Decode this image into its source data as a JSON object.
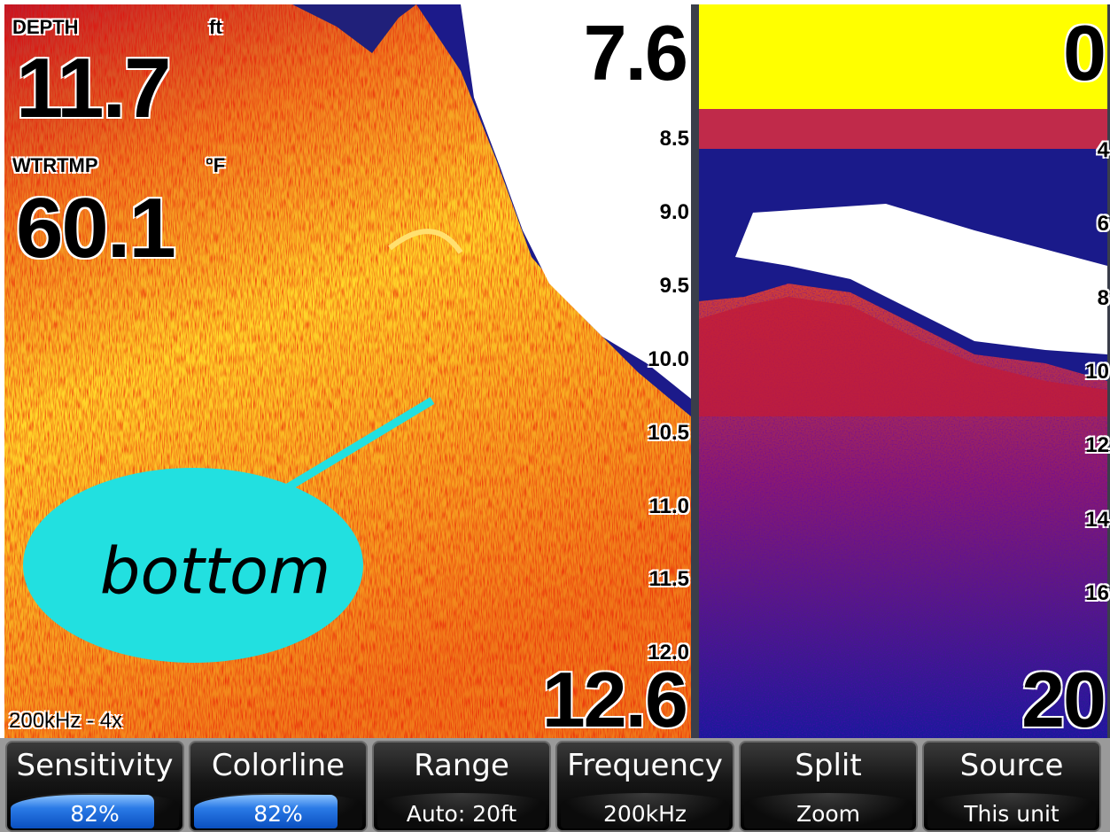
{
  "left_panel": {
    "depth_label": "DEPTH",
    "depth_unit": "ft",
    "depth_value": "11.7",
    "temp_label": "WTRTMP",
    "temp_unit": "°F",
    "temp_value": "60.1",
    "range_top": "7.6",
    "range_bottom": "12.6",
    "scale": [
      "8.5",
      "9.0",
      "9.5",
      "10.0",
      "10.5",
      "11.0",
      "11.5",
      "12.0"
    ],
    "frequency_info": "200kHz - 4x",
    "callout": "bottom"
  },
  "right_panel": {
    "range_top": "0",
    "range_bottom": "20",
    "scale": [
      "4",
      "6",
      "8",
      "10",
      "12",
      "14",
      "16"
    ]
  },
  "menu": [
    {
      "label": "Sensitivity",
      "value": "82%"
    },
    {
      "label": "Colorline",
      "value": "82%"
    },
    {
      "label": "Range",
      "value": "Auto: 20ft"
    },
    {
      "label": "Frequency",
      "value": "200kHz"
    },
    {
      "label": "Split",
      "value": "Zoom"
    },
    {
      "label": "Source",
      "value": "This unit"
    }
  ]
}
